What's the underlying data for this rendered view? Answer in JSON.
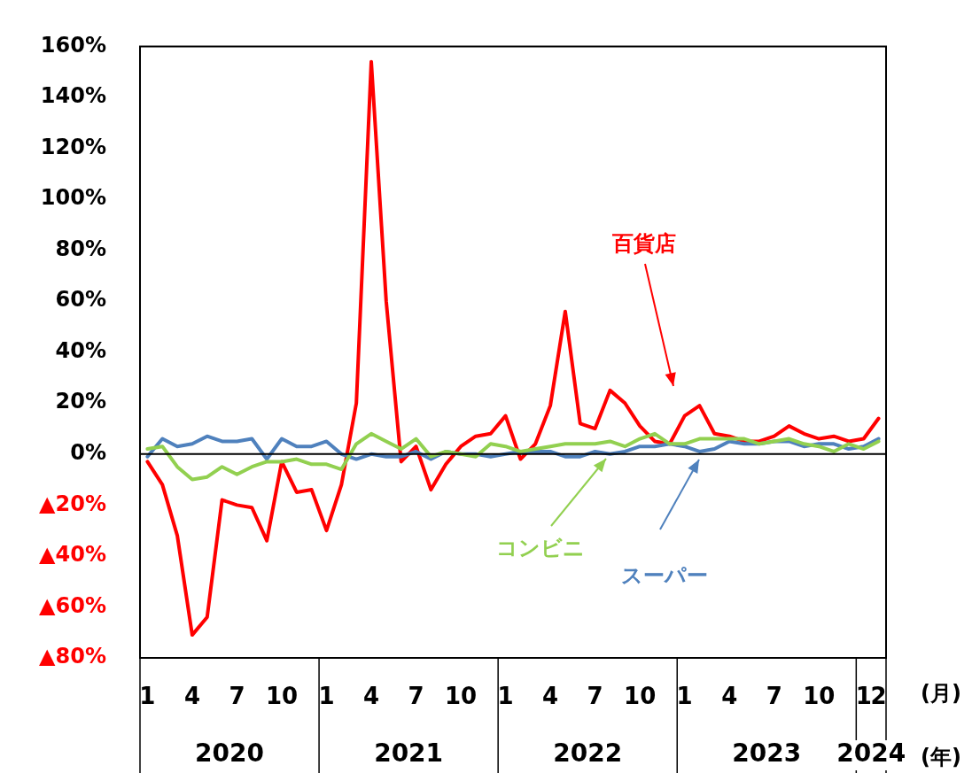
{
  "chart_data": {
    "type": "line",
    "categories": [
      "1",
      null,
      null,
      "4",
      null,
      null,
      "7",
      null,
      null,
      "10",
      null,
      null,
      "1",
      null,
      null,
      "4",
      null,
      null,
      "7",
      null,
      null,
      "10",
      null,
      null,
      "1",
      null,
      null,
      "4",
      null,
      null,
      "7",
      null,
      null,
      "10",
      null,
      null,
      "1",
      null,
      null,
      "4",
      null,
      null,
      "7",
      null,
      null,
      "10",
      null,
      null,
      "1",
      "2"
    ],
    "series": [
      {
        "name": "百貨店",
        "color": "#ff0000",
        "values": [
          -3,
          -12,
          -32,
          -71,
          -64,
          -18,
          -20,
          -21,
          -34,
          -3,
          -15,
          -14,
          -30,
          -12,
          20,
          154,
          60,
          -3,
          3,
          -14,
          -4,
          3,
          7,
          8,
          15,
          -2,
          4,
          19,
          56,
          12,
          10,
          25,
          20,
          11,
          5,
          4,
          15,
          19,
          8,
          7,
          5,
          5,
          7,
          11,
          8,
          6,
          7,
          5,
          6,
          14
        ]
      },
      {
        "name": "スーパー",
        "color": "#4f81bd",
        "values": [
          -1,
          6,
          3,
          4,
          7,
          5,
          5,
          6,
          -2,
          6,
          3,
          3,
          5,
          0,
          -2,
          0,
          -1,
          -1,
          1,
          -2,
          1,
          0,
          0,
          -1,
          0,
          1,
          1,
          1,
          -1,
          -1,
          1,
          0,
          1,
          3,
          3,
          4,
          3,
          1,
          2,
          5,
          4,
          4,
          5,
          5,
          3,
          4,
          4,
          2,
          3,
          6
        ]
      },
      {
        "name": "コンビニ",
        "color": "#92d050",
        "values": [
          2,
          3,
          -5,
          -10,
          -9,
          -5,
          -8,
          -5,
          -3,
          -3,
          -2,
          -4,
          -4,
          -6,
          4,
          8,
          5,
          2,
          6,
          -1,
          1,
          0,
          -1,
          4,
          3,
          1,
          2,
          3,
          4,
          4,
          4,
          5,
          3,
          6,
          8,
          4,
          4,
          6,
          6,
          6,
          6,
          4,
          5,
          6,
          4,
          3,
          1,
          4,
          2,
          5
        ]
      }
    ],
    "ylim": [
      -80,
      160
    ],
    "yticks": [
      {
        "value": -80,
        "label": "▲80%"
      },
      {
        "value": -60,
        "label": "▲60%"
      },
      {
        "value": -40,
        "label": "▲40%"
      },
      {
        "value": -20,
        "label": "▲20%"
      },
      {
        "value": 0,
        "label": "0%"
      },
      {
        "value": 20,
        "label": "20%"
      },
      {
        "value": 40,
        "label": "40%"
      },
      {
        "value": 60,
        "label": "60%"
      },
      {
        "value": 80,
        "label": "80%"
      },
      {
        "value": 100,
        "label": "100%"
      },
      {
        "value": 120,
        "label": "120%"
      },
      {
        "value": 140,
        "label": "140%"
      },
      {
        "value": 160,
        "label": "160%"
      }
    ],
    "ref_lines": [
      {
        "axis": "y",
        "value": 0,
        "color": "#000000"
      }
    ],
    "annotations": [
      "2020",
      "2021",
      "2022",
      "2023",
      "2024",
      "(月)",
      "(年)"
    ],
    "grid": false,
    "legend": false,
    "marker": "none",
    "line_style": "solid"
  }
}
